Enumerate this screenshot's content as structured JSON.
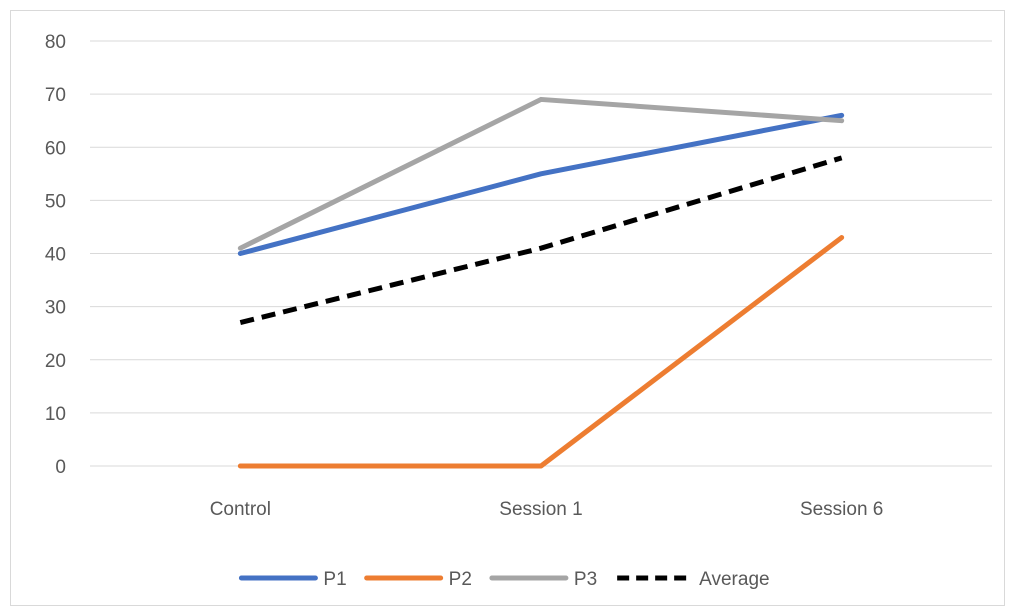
{
  "chart_data": {
    "type": "line",
    "categories": [
      "Control",
      "Session 1",
      "Session 6"
    ],
    "ylim": [
      0,
      80
    ],
    "yticks": [
      0,
      10,
      20,
      30,
      40,
      50,
      60,
      70,
      80
    ],
    "grid": true,
    "legend_position": "bottom",
    "series": [
      {
        "name": "P1",
        "values": [
          40,
          55,
          66
        ],
        "color": "#4472c4",
        "dash": false
      },
      {
        "name": "P2",
        "values": [
          0,
          0,
          43
        ],
        "color": "#ed7d31",
        "dash": false
      },
      {
        "name": "P3",
        "values": [
          41,
          69,
          65
        ],
        "color": "#a5a5a5",
        "dash": false
      },
      {
        "name": "Average",
        "values": [
          27,
          41,
          58
        ],
        "color": "#000000",
        "dash": true
      }
    ]
  }
}
